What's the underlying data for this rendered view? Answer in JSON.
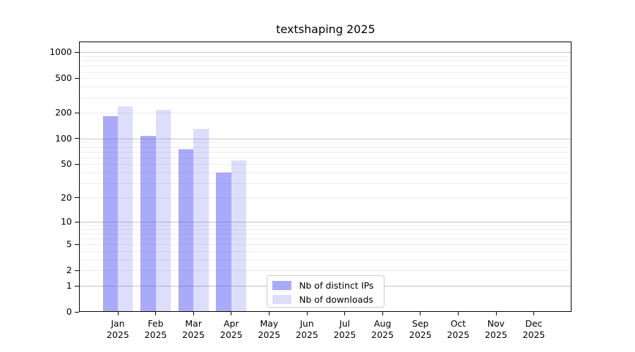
{
  "chart_data": {
    "type": "bar",
    "title": "textshaping 2025",
    "categories": [
      "Jan",
      "Feb",
      "Mar",
      "Apr",
      "May",
      "Jun",
      "Jul",
      "Aug",
      "Sep",
      "Oct",
      "Nov",
      "Dec"
    ],
    "x_tick_second_line": "2025",
    "series": [
      {
        "name": "Nb of distinct IPs",
        "color": "rgba(85,87,242,0.5)",
        "values": [
          183,
          107,
          75,
          40,
          0,
          0,
          0,
          0,
          0,
          0,
          0,
          0
        ]
      },
      {
        "name": "Nb of downloads",
        "color": "rgba(85,87,242,0.2)",
        "values": [
          235,
          215,
          130,
          55,
          0,
          0,
          0,
          0,
          0,
          0,
          0,
          0
        ]
      }
    ],
    "xlabel": "",
    "ylabel": "",
    "y_axis": {
      "scale": "log1p",
      "labeled_ticks": [
        0,
        1,
        2,
        5,
        10,
        20,
        50,
        100,
        200,
        500,
        1000
      ],
      "ylim": [
        0,
        1310
      ]
    },
    "grid": {
      "on": true,
      "major_ticks": [
        1,
        10,
        100,
        1000
      ],
      "minor_tick_bases": [
        1,
        10,
        100
      ],
      "major_color": "#c3c3c3",
      "minor_color": "#ededed"
    },
    "legend": {
      "position": "lower-center-inside",
      "entries": [
        "Nb of distinct IPs",
        "Nb of downloads"
      ]
    }
  }
}
